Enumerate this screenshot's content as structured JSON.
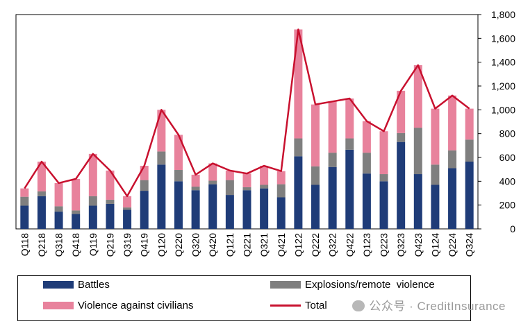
{
  "chart_data": {
    "type": "bar",
    "stacked": true,
    "categories": [
      "Q118",
      "Q218",
      "Q318",
      "Q418",
      "Q119",
      "Q219",
      "Q319",
      "Q419",
      "Q120",
      "Q220",
      "Q320",
      "Q420",
      "Q121",
      "Q221",
      "Q321",
      "Q421",
      "Q122",
      "Q222",
      "Q322",
      "Q422",
      "Q123",
      "Q223",
      "Q323",
      "Q423",
      "Q124",
      "Q224",
      "Q324"
    ],
    "series": [
      {
        "name": "Battles",
        "kind": "bar",
        "color": "#1f3c78",
        "values": [
          195,
          275,
          145,
          125,
          195,
          210,
          160,
          320,
          540,
          400,
          325,
          375,
          285,
          325,
          340,
          265,
          610,
          370,
          520,
          665,
          465,
          400,
          730,
          460,
          370,
          510,
          565
        ]
      },
      {
        "name": "Explosions/remote  violence",
        "kind": "bar",
        "color": "#7f7f7f",
        "values": [
          75,
          40,
          45,
          30,
          80,
          35,
          20,
          90,
          110,
          95,
          30,
          30,
          125,
          25,
          30,
          110,
          150,
          155,
          120,
          95,
          175,
          60,
          75,
          390,
          170,
          150,
          185
        ]
      },
      {
        "name": "Violence against civilians",
        "kind": "bar",
        "color": "#e8829c",
        "values": [
          70,
          250,
          195,
          265,
          355,
          245,
          95,
          120,
          350,
          295,
          100,
          145,
          80,
          115,
          160,
          110,
          915,
          520,
          430,
          335,
          265,
          360,
          355,
          525,
          470,
          460,
          260
        ]
      },
      {
        "name": "Total",
        "kind": "line",
        "color": "#c8102e",
        "values": [
          340,
          565,
          385,
          420,
          630,
          490,
          275,
          530,
          1000,
          790,
          455,
          550,
          490,
          465,
          530,
          485,
          1675,
          1045,
          1070,
          1095,
          905,
          820,
          1160,
          1375,
          1010,
          1120,
          1010
        ]
      }
    ],
    "yaxis": {
      "position": "right",
      "ylim": [
        0,
        1800
      ],
      "ticks": [
        "0",
        "200",
        "400",
        "600",
        "800",
        "1,000",
        "1,200",
        "1,400",
        "1,600",
        "1,800"
      ]
    },
    "xlabel": "",
    "ylabel": "",
    "grid": false,
    "legend": "bottom"
  },
  "legend": {
    "items": [
      {
        "label": "Battles"
      },
      {
        "label": "Explosions/remote  violence"
      },
      {
        "label": "Violence against civilians"
      },
      {
        "label": "Total"
      }
    ]
  },
  "watermark": {
    "text": "公众号 · CreditInsurance"
  }
}
